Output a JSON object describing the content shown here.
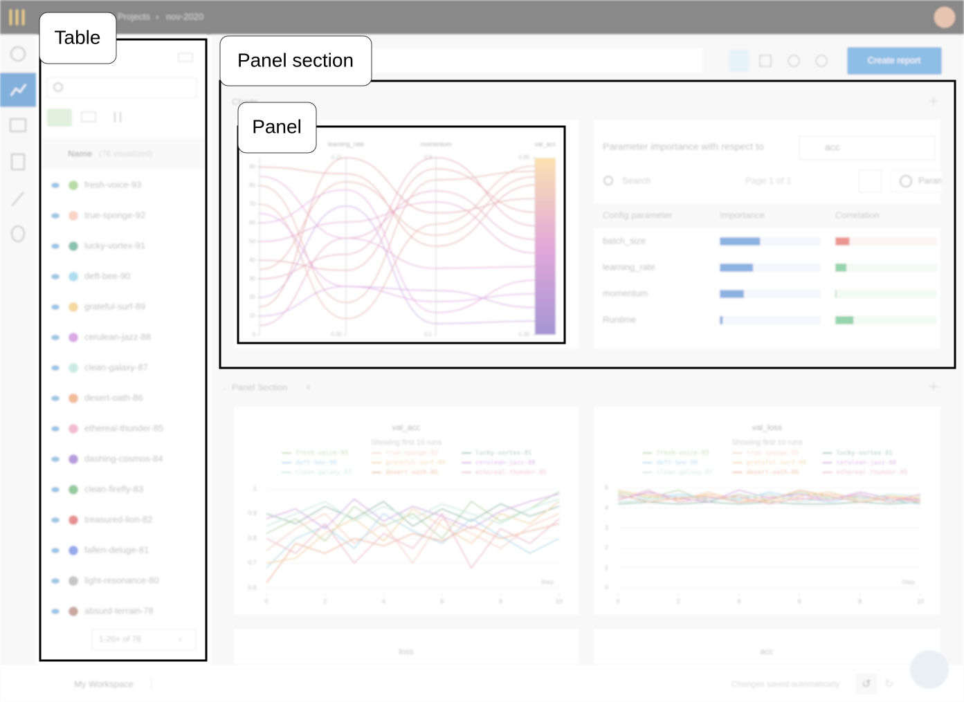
{
  "header": {
    "breadcrumb": [
      "Projects",
      "nov-2020"
    ]
  },
  "annotations": {
    "table": "Table",
    "panel_section": "Panel section",
    "panel": "Panel"
  },
  "table": {
    "header": "Name",
    "visualized": "(76 visualized)",
    "pagination": "1-20+ of 76",
    "runs": [
      {
        "name": "fresh-voice-93",
        "color": "#8bc46a"
      },
      {
        "name": "true-sponge-92",
        "color": "#f2b8a2"
      },
      {
        "name": "lucky-vortex-91",
        "color": "#3a9a7a"
      },
      {
        "name": "deft-bee-90",
        "color": "#7ec8e8"
      },
      {
        "name": "grateful-surf-89",
        "color": "#f0c060"
      },
      {
        "name": "cerulean-jazz-88",
        "color": "#c070d8"
      },
      {
        "name": "clean-galaxy-87",
        "color": "#a8e0d0"
      },
      {
        "name": "desert-oath-86",
        "color": "#e89050"
      },
      {
        "name": "ethereal-thunder-85",
        "color": "#e890b0"
      },
      {
        "name": "dashing-cosmos-84",
        "color": "#8a5ac8"
      },
      {
        "name": "clean-firefly-83",
        "color": "#50a860"
      },
      {
        "name": "treasured-lion-82",
        "color": "#d84848"
      },
      {
        "name": "fallen-deluge-81",
        "color": "#5070e0"
      },
      {
        "name": "light-resonance-80",
        "color": "#a0a0a0"
      },
      {
        "name": "absurd-terrain-78",
        "color": "#a87060"
      }
    ]
  },
  "toolbar": {
    "create_report": "Create report"
  },
  "section1": {
    "title": "Charts",
    "parallel": {
      "axes": [
        {
          "name": null,
          "lim": [
            0,
            95
          ],
          "ticks": [
            0,
            10,
            20,
            30,
            40,
            50,
            60,
            70,
            80,
            90
          ]
        },
        {
          "name": "learning_rate",
          "lim": [
            0,
            0.11
          ],
          "ticks": [
            {
              "value": 0,
              "label": "0.00"
            },
            0.11
          ]
        },
        {
          "name": "momentum",
          "lim": [
            0.1,
            0.9
          ],
          "ticks": [
            0.1,
            0.9
          ]
        },
        {
          "name": "val_acc",
          "lim": [
            0.3,
            0.95
          ],
          "ticks": [
            {
              "value": 0.3,
              "label": "0.30"
            },
            {
              "value": 0.95,
              "label": "0.95"
            }
          ]
        }
      ],
      "lines": [
        [
          80,
          0.02,
          0.8,
          0.9
        ],
        [
          60,
          0.09,
          0.2,
          0.5
        ],
        [
          30,
          0.05,
          0.9,
          0.7
        ],
        [
          90,
          0.1,
          0.5,
          0.85
        ],
        [
          10,
          0.03,
          0.3,
          0.4
        ],
        [
          50,
          0.07,
          0.7,
          0.6
        ],
        [
          70,
          0.01,
          0.6,
          0.92
        ],
        [
          20,
          0.08,
          0.15,
          0.35
        ],
        [
          40,
          0.04,
          0.85,
          0.75
        ],
        [
          85,
          0.06,
          0.4,
          0.55
        ],
        [
          15,
          0.11,
          0.65,
          0.8
        ],
        [
          65,
          0.03,
          0.25,
          0.45
        ],
        [
          35,
          0.095,
          0.55,
          0.88
        ],
        [
          5,
          0.06,
          0.75,
          0.65
        ]
      ]
    },
    "importance": {
      "title": "Parameter importance with respect to",
      "metric": "acc",
      "search": "Search",
      "page": "Page 1 of 1",
      "button": "Parameters",
      "columns": [
        "Config parameter",
        "Importance",
        "Correlation"
      ],
      "rows": [
        {
          "param": "batch_size",
          "importance": 0.4,
          "correlation": -0.14
        },
        {
          "param": "learning_rate",
          "importance": 0.33,
          "correlation": 0.11
        },
        {
          "param": "momentum",
          "importance": 0.24,
          "correlation": 0.01
        },
        {
          "param": "Runtime",
          "importance": 0.03,
          "correlation": 0.18
        }
      ]
    }
  },
  "section2": {
    "title": "Panel Section",
    "count": "4",
    "panels": [
      {
        "title": "val_acc",
        "subtitle": "Showing first 10 runs",
        "x_label": "Step",
        "x": [
          0,
          1,
          2,
          3,
          4,
          5,
          6,
          7,
          8,
          9,
          10
        ],
        "xlim": [
          0,
          10
        ],
        "xticks": [
          0,
          2,
          4,
          6,
          8,
          10
        ],
        "ylim": [
          0.6,
          1.02
        ],
        "yticks": [
          0.6,
          0.7,
          0.8,
          0.9,
          1
        ],
        "values": [
          [
            0.82,
            0.88,
            0.79,
            0.93,
            0.85,
            0.9,
            0.8,
            0.95,
            0.87,
            0.92,
            0.99
          ],
          [
            0.75,
            0.84,
            0.9,
            0.78,
            0.86,
            0.7,
            0.88,
            0.82,
            0.76,
            0.85,
            0.9
          ],
          [
            0.9,
            0.86,
            0.93,
            0.88,
            0.95,
            0.85,
            0.92,
            0.87,
            0.94,
            0.89,
            0.93
          ],
          [
            0.68,
            0.8,
            0.85,
            0.76,
            0.9,
            0.83,
            0.78,
            0.88,
            0.81,
            0.74,
            0.8
          ],
          [
            0.7,
            0.72,
            0.82,
            0.88,
            0.79,
            0.92,
            0.85,
            0.78,
            0.9,
            0.86,
            0.95
          ],
          [
            0.88,
            0.92,
            0.84,
            0.96,
            0.87,
            0.93,
            0.89,
            0.84,
            0.91,
            0.95,
            0.98
          ],
          [
            0.85,
            0.9,
            0.95,
            0.87,
            0.93,
            0.88,
            0.94,
            0.9,
            0.86,
            0.92,
            0.96
          ],
          [
            0.62,
            0.78,
            0.74,
            0.8,
            0.77,
            0.82,
            0.79,
            0.85,
            0.8,
            0.83,
            0.86
          ],
          [
            0.8,
            0.74,
            0.86,
            0.7,
            0.82,
            0.76,
            0.9,
            0.68,
            0.84,
            0.78,
            0.88
          ]
        ]
      },
      {
        "title": "val_loss",
        "subtitle": "Showing first 10 runs",
        "x_label": "Step",
        "x": [
          0,
          1,
          2,
          3,
          4,
          5,
          6,
          7,
          8,
          9,
          10
        ],
        "xlim": [
          0,
          10
        ],
        "xticks": [
          0,
          2,
          4,
          6,
          8,
          10
        ],
        "ylim": [
          0,
          5.2
        ],
        "yticks": [
          0,
          1,
          2,
          3,
          4,
          5
        ],
        "values": [
          [
            4.8,
            4.5,
            4.9,
            4.3,
            4.7,
            4.4,
            4.8,
            4.5,
            4.6,
            4.3,
            4.5
          ],
          [
            4.5,
            4.7,
            4.4,
            4.8,
            4.3,
            4.6,
            4.4,
            4.7,
            4.5,
            4.6,
            4.4
          ],
          [
            4.2,
            4.3,
            4.2,
            4.3,
            4.2,
            4.3,
            4.2,
            4.2,
            4.3,
            4.2,
            4.3
          ],
          [
            4.6,
            4.4,
            4.7,
            4.5,
            4.4,
            4.8,
            4.5,
            4.3,
            4.6,
            4.4,
            4.2
          ],
          [
            4.9,
            4.6,
            4.4,
            4.7,
            4.5,
            4.3,
            4.6,
            4.8,
            4.4,
            4.6,
            4.5
          ],
          [
            4.4,
            4.8,
            4.5,
            4.3,
            4.9,
            4.5,
            4.7,
            4.4,
            4.8,
            4.5,
            4.4
          ],
          [
            4.3,
            4.4,
            4.6,
            4.4,
            4.5,
            4.7,
            4.3,
            4.5,
            4.4,
            4.7,
            4.6
          ],
          [
            4.7,
            4.3,
            4.5,
            4.6,
            4.3,
            4.4,
            4.9,
            4.6,
            4.3,
            4.5,
            4.3
          ],
          [
            4.4,
            4.9,
            4.3,
            4.5,
            4.6,
            4.2,
            4.5,
            4.4,
            4.7,
            4.3,
            4.7
          ]
        ]
      }
    ],
    "more_panels": [
      "loss",
      "acc"
    ]
  },
  "footer": {
    "workspace": "My Workspace",
    "status": "Changes saved automatically"
  }
}
